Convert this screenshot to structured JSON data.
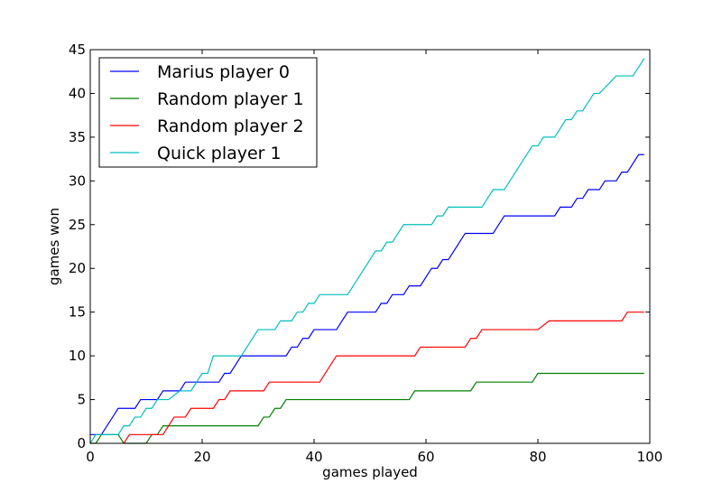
{
  "chart_data": {
    "type": "line",
    "title": "",
    "xlabel": "games played",
    "ylabel": "games won",
    "xlim": [
      0,
      100
    ],
    "ylim": [
      0,
      45
    ],
    "xticks": [
      0,
      20,
      40,
      60,
      80,
      100
    ],
    "yticks": [
      0,
      5,
      10,
      15,
      20,
      25,
      30,
      35,
      40,
      45
    ],
    "grid": false,
    "legend_position": "top-left",
    "series": [
      {
        "name": "Marius player 0",
        "color": "#0000ff",
        "points": [
          [
            0,
            1
          ],
          [
            2,
            1
          ],
          [
            5,
            4
          ],
          [
            8,
            4
          ],
          [
            9,
            5
          ],
          [
            12,
            5
          ],
          [
            13,
            6
          ],
          [
            16,
            6
          ],
          [
            17,
            7
          ],
          [
            23,
            7
          ],
          [
            24,
            8
          ],
          [
            25,
            8
          ],
          [
            27,
            10
          ],
          [
            35,
            10
          ],
          [
            36,
            11
          ],
          [
            37,
            11
          ],
          [
            38,
            12
          ],
          [
            39,
            12
          ],
          [
            40,
            13
          ],
          [
            44,
            13
          ],
          [
            46,
            15
          ],
          [
            51,
            15
          ],
          [
            52,
            16
          ],
          [
            53,
            16
          ],
          [
            54,
            17
          ],
          [
            56,
            17
          ],
          [
            57,
            18
          ],
          [
            59,
            18
          ],
          [
            61,
            20
          ],
          [
            62,
            20
          ],
          [
            63,
            21
          ],
          [
            64,
            21
          ],
          [
            67,
            24
          ],
          [
            72,
            24
          ],
          [
            74,
            26
          ],
          [
            83,
            26
          ],
          [
            84,
            27
          ],
          [
            86,
            27
          ],
          [
            87,
            28
          ],
          [
            88,
            28
          ],
          [
            89,
            29
          ],
          [
            91,
            29
          ],
          [
            92,
            30
          ],
          [
            94,
            30
          ],
          [
            95,
            31
          ],
          [
            96,
            31
          ],
          [
            98,
            33
          ],
          [
            99,
            33
          ]
        ]
      },
      {
        "name": "Random player 1",
        "color": "#008000",
        "points": [
          [
            0,
            0
          ],
          [
            1,
            0
          ],
          [
            2,
            1
          ],
          [
            5,
            1
          ],
          [
            6,
            0
          ],
          [
            10,
            0
          ],
          [
            11,
            1
          ],
          [
            12,
            1
          ],
          [
            13,
            2
          ],
          [
            30,
            2
          ],
          [
            31,
            3
          ],
          [
            32,
            3
          ],
          [
            33,
            4
          ],
          [
            34,
            4
          ],
          [
            35,
            5
          ],
          [
            57,
            5
          ],
          [
            58,
            6
          ],
          [
            68,
            6
          ],
          [
            69,
            7
          ],
          [
            79,
            7
          ],
          [
            80,
            8
          ],
          [
            99,
            8
          ]
        ]
      },
      {
        "name": "Random player 2",
        "color": "#ff0000",
        "points": [
          [
            6,
            0
          ],
          [
            7,
            1
          ],
          [
            13,
            1
          ],
          [
            15,
            3
          ],
          [
            17,
            3
          ],
          [
            18,
            4
          ],
          [
            22,
            4
          ],
          [
            23,
            5
          ],
          [
            24,
            5
          ],
          [
            25,
            6
          ],
          [
            31,
            6
          ],
          [
            32,
            7
          ],
          [
            41,
            7
          ],
          [
            44,
            10
          ],
          [
            58,
            10
          ],
          [
            59,
            11
          ],
          [
            67,
            11
          ],
          [
            68,
            12
          ],
          [
            69,
            12
          ],
          [
            70,
            13
          ],
          [
            80,
            13
          ],
          [
            82,
            14
          ],
          [
            95,
            14
          ],
          [
            96,
            15
          ],
          [
            99,
            15
          ]
        ]
      },
      {
        "name": "Quick player 1",
        "color": "#00bfbf",
        "points": [
          [
            0,
            0
          ],
          [
            1,
            1
          ],
          [
            5,
            1
          ],
          [
            6,
            2
          ],
          [
            7,
            2
          ],
          [
            8,
            3
          ],
          [
            9,
            3
          ],
          [
            10,
            4
          ],
          [
            11,
            4
          ],
          [
            12,
            5
          ],
          [
            14,
            5
          ],
          [
            16,
            6
          ],
          [
            18,
            6
          ],
          [
            20,
            8
          ],
          [
            21,
            8
          ],
          [
            22,
            10
          ],
          [
            27,
            10
          ],
          [
            30,
            13
          ],
          [
            33,
            13
          ],
          [
            34,
            14
          ],
          [
            36,
            14
          ],
          [
            37,
            15
          ],
          [
            38,
            15
          ],
          [
            39,
            16
          ],
          [
            40,
            16
          ],
          [
            41,
            17
          ],
          [
            46,
            17
          ],
          [
            51,
            22
          ],
          [
            52,
            22
          ],
          [
            53,
            23
          ],
          [
            54,
            23
          ],
          [
            56,
            25
          ],
          [
            61,
            25
          ],
          [
            62,
            26
          ],
          [
            63,
            26
          ],
          [
            64,
            27
          ],
          [
            70,
            27
          ],
          [
            72,
            29
          ],
          [
            74,
            29
          ],
          [
            79,
            34
          ],
          [
            80,
            34
          ],
          [
            81,
            35
          ],
          [
            83,
            35
          ],
          [
            85,
            37
          ],
          [
            86,
            37
          ],
          [
            87,
            38
          ],
          [
            88,
            38
          ],
          [
            90,
            40
          ],
          [
            91,
            40
          ],
          [
            94,
            42
          ],
          [
            97,
            42
          ],
          [
            99,
            44
          ]
        ]
      }
    ]
  }
}
